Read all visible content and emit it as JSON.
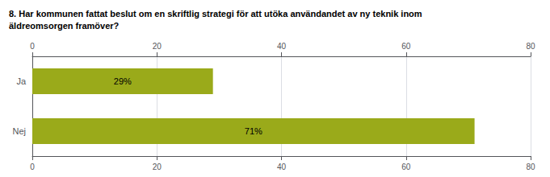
{
  "chart_data": {
    "type": "bar",
    "orientation": "horizontal",
    "title": "8. Har kommunen fattat beslut om en skriftlig strategi för att utöka användandet av ny teknik inom\näldreomsorgen framöver?",
    "categories": [
      "Ja",
      "Nej"
    ],
    "values": [
      29,
      71
    ],
    "value_labels": [
      "29%",
      "71%"
    ],
    "data_labels": true,
    "color": "#9aaa1a",
    "xlim": [
      0,
      80
    ],
    "xticks": [
      0,
      20,
      40,
      60,
      80
    ],
    "grid": true
  }
}
